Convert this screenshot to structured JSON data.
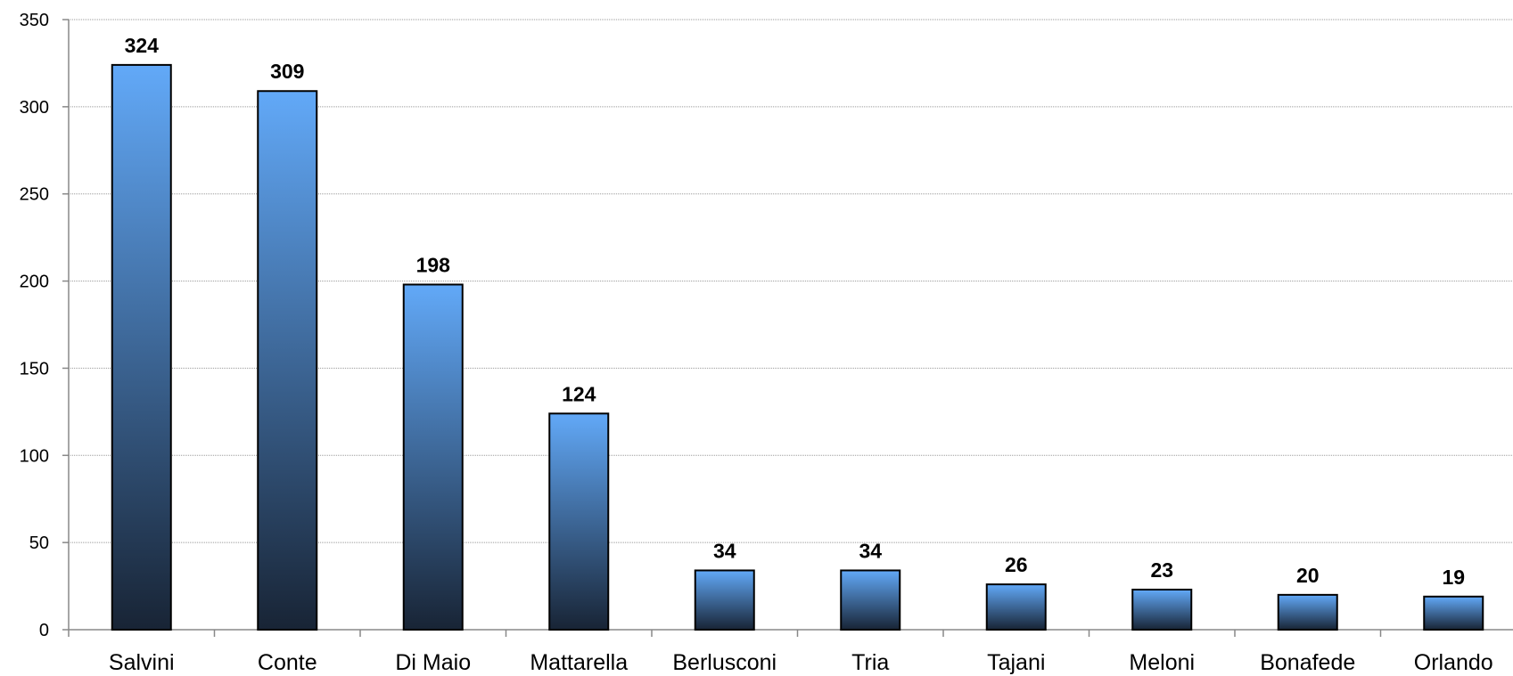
{
  "chart_data": {
    "type": "bar",
    "title": "",
    "xlabel": "",
    "ylabel": "",
    "categories": [
      "Salvini",
      "Conte",
      "Di Maio",
      "Mattarella",
      "Berlusconi",
      "Tria",
      "Tajani",
      "Meloni",
      "Bonafede",
      "Orlando"
    ],
    "values": [
      324,
      309,
      198,
      124,
      34,
      34,
      26,
      23,
      20,
      19
    ],
    "data_labels": [
      "324",
      "309",
      "198",
      "124",
      "34",
      "34",
      "26",
      "23",
      "20",
      "19"
    ],
    "ylim": [
      0,
      350
    ],
    "yticks": [
      "0",
      "50",
      "100",
      "150",
      "200",
      "250",
      "300",
      "350"
    ],
    "grid": true,
    "legend": "none",
    "colors": {
      "bar_top": "#62a9f8",
      "bar_bottom": "#182435",
      "bar_stroke": "#000000",
      "grid": "#9a9a9a",
      "axis": "#888888"
    }
  }
}
